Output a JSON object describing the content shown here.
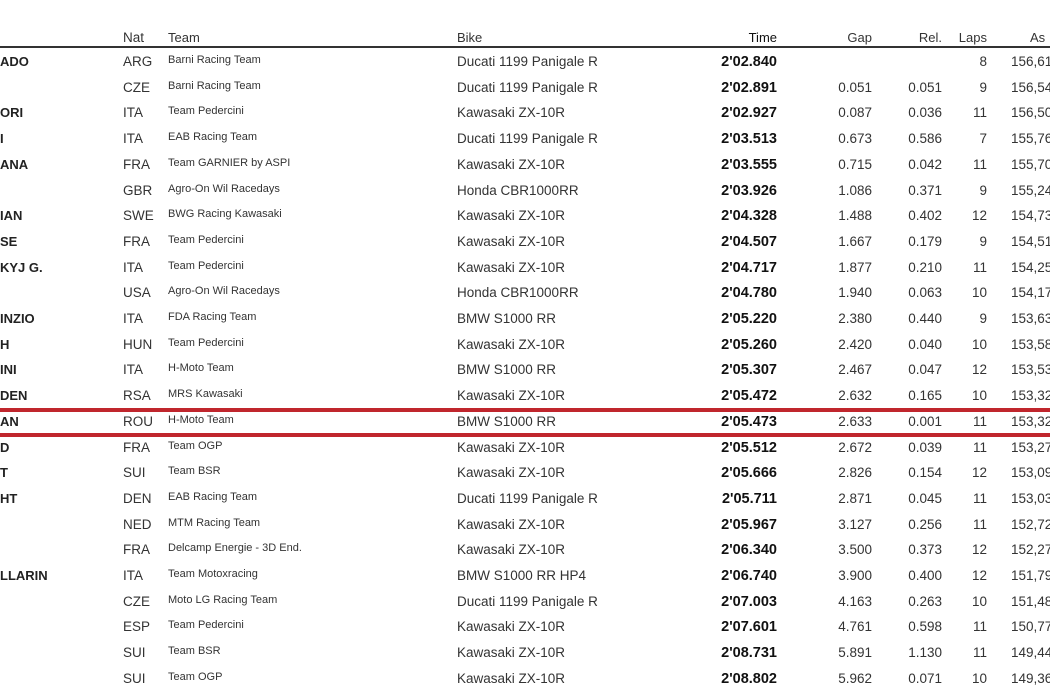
{
  "headers": {
    "nat": "Nat",
    "team": "Team",
    "bike": "Bike",
    "time": "Time",
    "gap": "Gap",
    "rel": "Rel.",
    "laps": "Laps",
    "avg": "As"
  },
  "highlight_color": "#c0262d",
  "highlighted_row": 14,
  "rows": [
    {
      "name": "ADO",
      "nat": "ARG",
      "team": "Barni Racing Team",
      "bike": "Ducati 1199 Panigale R",
      "time": "2'02.840",
      "gap": "",
      "rel": "",
      "laps": "8",
      "avg": "156,61"
    },
    {
      "name": "",
      "nat": "CZE",
      "team": "Barni Racing Team",
      "bike": "Ducati 1199 Panigale R",
      "time": "2'02.891",
      "gap": "0.051",
      "rel": "0.051",
      "laps": "9",
      "avg": "156,54"
    },
    {
      "name": "ORI",
      "nat": "ITA",
      "team": "Team Pedercini",
      "bike": "Kawasaki ZX-10R",
      "time": "2'02.927",
      "gap": "0.087",
      "rel": "0.036",
      "laps": "11",
      "avg": "156,50"
    },
    {
      "name": "I",
      "nat": "ITA",
      "team": "EAB Racing Team",
      "bike": "Ducati 1199 Panigale R",
      "time": "2'03.513",
      "gap": "0.673",
      "rel": "0.586",
      "laps": "7",
      "avg": "155,76"
    },
    {
      "name": "ANA",
      "nat": "FRA",
      "team": "Team GARNIER by ASPI",
      "bike": "Kawasaki ZX-10R",
      "time": "2'03.555",
      "gap": "0.715",
      "rel": "0.042",
      "laps": "11",
      "avg": "155,70"
    },
    {
      "name": "",
      "nat": "GBR",
      "team": "Agro-On Wil Racedays",
      "bike": "Honda CBR1000RR",
      "time": "2'03.926",
      "gap": "1.086",
      "rel": "0.371",
      "laps": "9",
      "avg": "155,24"
    },
    {
      "name": "IAN",
      "nat": "SWE",
      "team": "BWG Racing Kawasaki",
      "bike": "Kawasaki ZX-10R",
      "time": "2'04.328",
      "gap": "1.488",
      "rel": "0.402",
      "laps": "12",
      "avg": "154,73"
    },
    {
      "name": "SE",
      "nat": "FRA",
      "team": "Team Pedercini",
      "bike": "Kawasaki ZX-10R",
      "time": "2'04.507",
      "gap": "1.667",
      "rel": "0.179",
      "laps": "9",
      "avg": "154,51"
    },
    {
      "name": "KYJ G.",
      "nat": "ITA",
      "team": "Team Pedercini",
      "bike": "Kawasaki ZX-10R",
      "time": "2'04.717",
      "gap": "1.877",
      "rel": "0.210",
      "laps": "11",
      "avg": "154,25"
    },
    {
      "name": "",
      "nat": "USA",
      "team": "Agro-On Wil Racedays",
      "bike": "Honda CBR1000RR",
      "time": "2'04.780",
      "gap": "1.940",
      "rel": "0.063",
      "laps": "10",
      "avg": "154,17"
    },
    {
      "name": "INZIO",
      "nat": "ITA",
      "team": "FDA Racing Team",
      "bike": "BMW S1000 RR",
      "time": "2'05.220",
      "gap": "2.380",
      "rel": "0.440",
      "laps": "9",
      "avg": "153,63"
    },
    {
      "name": "H",
      "nat": "HUN",
      "team": "Team Pedercini",
      "bike": "Kawasaki ZX-10R",
      "time": "2'05.260",
      "gap": "2.420",
      "rel": "0.040",
      "laps": "10",
      "avg": "153,58"
    },
    {
      "name": "INI",
      "nat": "ITA",
      "team": "H-Moto Team",
      "bike": "BMW S1000 RR",
      "time": "2'05.307",
      "gap": "2.467",
      "rel": "0.047",
      "laps": "12",
      "avg": "153,53"
    },
    {
      "name": "DEN",
      "nat": "RSA",
      "team": "MRS Kawasaki",
      "bike": "Kawasaki ZX-10R",
      "time": "2'05.472",
      "gap": "2.632",
      "rel": "0.165",
      "laps": "10",
      "avg": "153,32"
    },
    {
      "name": "AN",
      "nat": "ROU",
      "team": "H-Moto Team",
      "bike": "BMW S1000 RR",
      "time": "2'05.473",
      "gap": "2.633",
      "rel": "0.001",
      "laps": "11",
      "avg": "153,32"
    },
    {
      "name": "D",
      "nat": "FRA",
      "team": "Team OGP",
      "bike": "Kawasaki ZX-10R",
      "time": "2'05.512",
      "gap": "2.672",
      "rel": "0.039",
      "laps": "11",
      "avg": "153,27"
    },
    {
      "name": "T",
      "nat": "SUI",
      "team": "Team BSR",
      "bike": "Kawasaki ZX-10R",
      "time": "2'05.666",
      "gap": "2.826",
      "rel": "0.154",
      "laps": "12",
      "avg": "153,09"
    },
    {
      "name": "HT",
      "nat": "DEN",
      "team": "EAB Racing Team",
      "bike": "Ducati 1199 Panigale R",
      "time": "2'05.711",
      "gap": "2.871",
      "rel": "0.045",
      "laps": "11",
      "avg": "153,03"
    },
    {
      "name": "",
      "nat": "NED",
      "team": "MTM Racing Team",
      "bike": "Kawasaki ZX-10R",
      "time": "2'05.967",
      "gap": "3.127",
      "rel": "0.256",
      "laps": "11",
      "avg": "152,72"
    },
    {
      "name": "",
      "nat": "FRA",
      "team": "Delcamp Energie - 3D End.",
      "bike": "Kawasaki ZX-10R",
      "time": "2'06.340",
      "gap": "3.500",
      "rel": "0.373",
      "laps": "12",
      "avg": "152,27"
    },
    {
      "name": "LLARIN",
      "nat": "ITA",
      "team": "Team Motoxracing",
      "bike": "BMW S1000 RR HP4",
      "time": "2'06.740",
      "gap": "3.900",
      "rel": "0.400",
      "laps": "12",
      "avg": "151,79"
    },
    {
      "name": "",
      "nat": "CZE",
      "team": "Moto LG Racing Team",
      "bike": "Ducati 1199 Panigale R",
      "time": "2'07.003",
      "gap": "4.163",
      "rel": "0.263",
      "laps": "10",
      "avg": "151,48"
    },
    {
      "name": "",
      "nat": "ESP",
      "team": "Team Pedercini",
      "bike": "Kawasaki ZX-10R",
      "time": "2'07.601",
      "gap": "4.761",
      "rel": "0.598",
      "laps": "11",
      "avg": "150,77"
    },
    {
      "name": "",
      "nat": "SUI",
      "team": "Team BSR",
      "bike": "Kawasaki ZX-10R",
      "time": "2'08.731",
      "gap": "5.891",
      "rel": "1.130",
      "laps": "11",
      "avg": "149,44"
    },
    {
      "name": "",
      "nat": "SUI",
      "team": "Team OGP",
      "bike": "Kawasaki ZX-10R",
      "time": "2'08.802",
      "gap": "5.962",
      "rel": "0.071",
      "laps": "10",
      "avg": "149,36"
    }
  ]
}
